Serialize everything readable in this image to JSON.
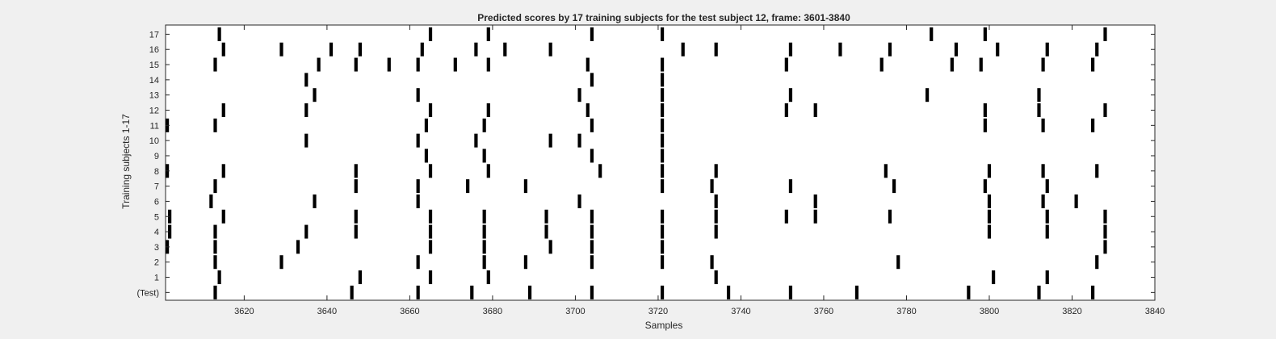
{
  "chart_data": {
    "type": "raster",
    "title": "Predicted scores by 17 training subjects for the test subject 12, frame: 3601-3840",
    "xlabel": "Samples",
    "ylabel": "Training subjects 1-17",
    "xlim": [
      3601,
      3840
    ],
    "x_ticks": [
      3620,
      3640,
      3660,
      3680,
      3700,
      3720,
      3740,
      3760,
      3780,
      3800,
      3820,
      3840
    ],
    "y_tick_labels": [
      "(Test)",
      "1",
      "2",
      "3",
      "4",
      "5",
      "6",
      "7",
      "8",
      "9",
      "10",
      "11",
      "12",
      "13",
      "14",
      "15",
      "16",
      "17"
    ],
    "grid": false,
    "mark_color": "#000000",
    "rows": [
      {
        "label": "(Test)",
        "events": [
          3613,
          3646,
          3662,
          3675,
          3689,
          3704,
          3721,
          3737,
          3752,
          3768,
          3795,
          3812,
          3825
        ]
      },
      {
        "label": "1",
        "events": [
          3614,
          3648,
          3665,
          3679,
          3734,
          3801,
          3814
        ]
      },
      {
        "label": "2",
        "events": [
          3613,
          3629,
          3662,
          3678,
          3688,
          3704,
          3721,
          3733,
          3778,
          3826
        ]
      },
      {
        "label": "3",
        "events": [
          3601,
          3613,
          3633,
          3665,
          3678,
          3694,
          3704,
          3721,
          3828
        ]
      },
      {
        "label": "4",
        "events": [
          3602,
          3613,
          3635,
          3647,
          3665,
          3678,
          3693,
          3704,
          3721,
          3734,
          3800,
          3814,
          3828
        ]
      },
      {
        "label": "5",
        "events": [
          3602,
          3615,
          3647,
          3665,
          3678,
          3693,
          3704,
          3721,
          3734,
          3751,
          3758,
          3776,
          3800,
          3814,
          3828
        ]
      },
      {
        "label": "6",
        "events": [
          3612,
          3637,
          3662,
          3701,
          3734,
          3758,
          3800,
          3813,
          3821
        ]
      },
      {
        "label": "7",
        "events": [
          3613,
          3647,
          3662,
          3674,
          3688,
          3721,
          3733,
          3752,
          3777,
          3799,
          3814
        ]
      },
      {
        "label": "8",
        "events": [
          3601,
          3615,
          3647,
          3665,
          3679,
          3706,
          3721,
          3734,
          3775,
          3800,
          3813,
          3826
        ]
      },
      {
        "label": "9",
        "events": [
          3664,
          3678,
          3704,
          3721
        ]
      },
      {
        "label": "10",
        "events": [
          3635,
          3662,
          3676,
          3694,
          3701,
          3721
        ]
      },
      {
        "label": "11",
        "events": [
          3601,
          3613,
          3664,
          3678,
          3704,
          3721,
          3799,
          3813,
          3825
        ]
      },
      {
        "label": "12",
        "events": [
          3615,
          3635,
          3665,
          3679,
          3703,
          3721,
          3751,
          3758,
          3799,
          3812,
          3828
        ]
      },
      {
        "label": "13",
        "events": [
          3637,
          3662,
          3701,
          3721,
          3752,
          3785,
          3812
        ]
      },
      {
        "label": "14",
        "events": [
          3635,
          3704,
          3721
        ]
      },
      {
        "label": "15",
        "events": [
          3613,
          3638,
          3647,
          3655,
          3662,
          3671,
          3679,
          3703,
          3721,
          3751,
          3774,
          3791,
          3798,
          3813,
          3825
        ]
      },
      {
        "label": "16",
        "events": [
          3615,
          3629,
          3641,
          3648,
          3663,
          3676,
          3683,
          3694,
          3726,
          3734,
          3752,
          3764,
          3776,
          3792,
          3802,
          3814,
          3826
        ]
      },
      {
        "label": "17",
        "events": [
          3614,
          3665,
          3679,
          3704,
          3721,
          3786,
          3799,
          3828
        ]
      }
    ]
  }
}
